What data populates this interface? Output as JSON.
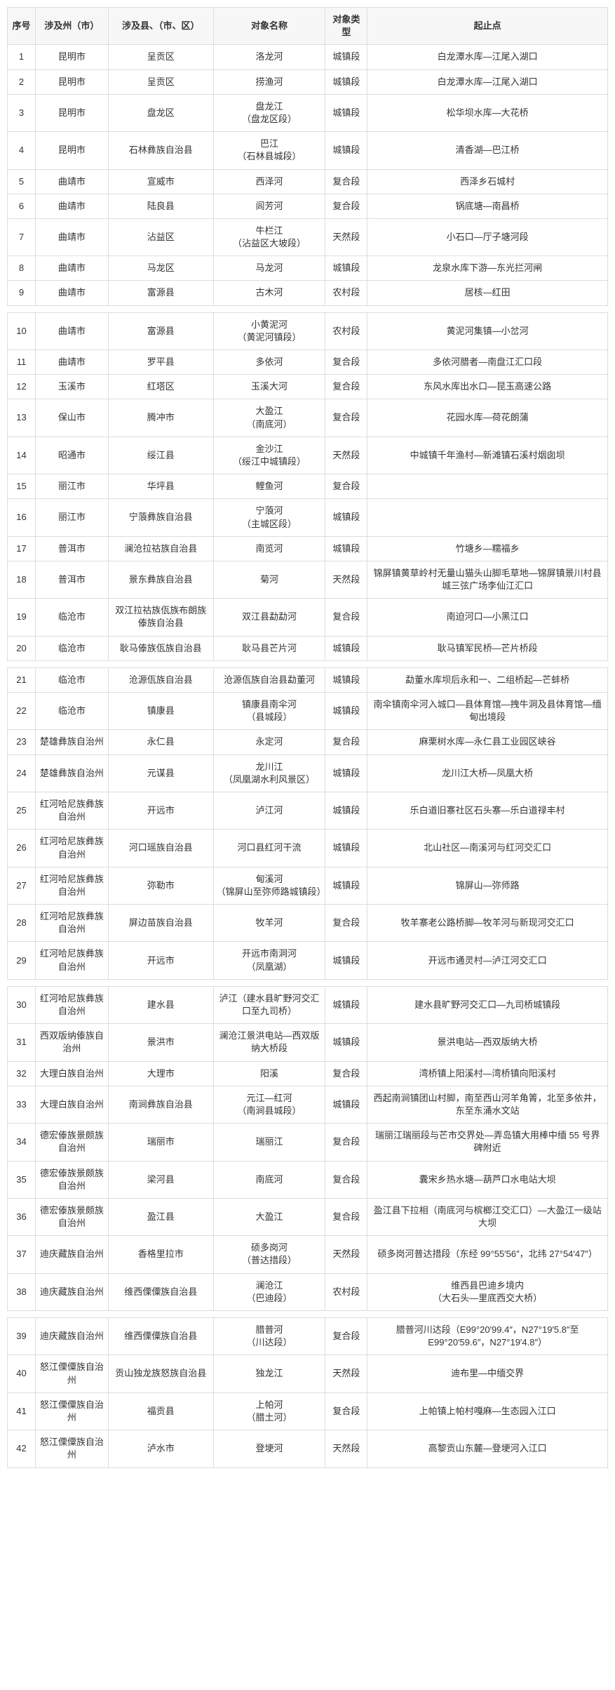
{
  "headers": [
    "序号",
    "涉及州（市）",
    "涉及县、（市、区）",
    "对象名称",
    "对象类型",
    "起止点"
  ],
  "gap_after": [
    9,
    20,
    29,
    38
  ],
  "rows": [
    {
      "seq": 1,
      "pref": "昆明市",
      "county": "呈贡区",
      "obj": "洛龙河",
      "type": "城镇段",
      "span": "白龙潭水库—江尾入湖口"
    },
    {
      "seq": 2,
      "pref": "昆明市",
      "county": "呈贡区",
      "obj": "捞渔河",
      "type": "城镇段",
      "span": "白龙潭水库—江尾入湖口"
    },
    {
      "seq": 3,
      "pref": "昆明市",
      "county": "盘龙区",
      "obj": "盘龙江\n（盘龙区段）",
      "type": "城镇段",
      "span": "松华坝水库—大花桥"
    },
    {
      "seq": 4,
      "pref": "昆明市",
      "county": "石林彝族自治县",
      "obj": "巴江\n（石林县城段）",
      "type": "城镇段",
      "span": "清香湖—巴江桥"
    },
    {
      "seq": 5,
      "pref": "曲靖市",
      "county": "宣威市",
      "obj": "西泽河",
      "type": "复合段",
      "span": "西泽乡石城村"
    },
    {
      "seq": 6,
      "pref": "曲靖市",
      "county": "陆良县",
      "obj": "闾芳河",
      "type": "复合段",
      "span": "锅底塘—南昌桥"
    },
    {
      "seq": 7,
      "pref": "曲靖市",
      "county": "沾益区",
      "obj": "牛栏江\n（沾益区大坡段）",
      "type": "天然段",
      "span": "小石口—厅子塘河段"
    },
    {
      "seq": 8,
      "pref": "曲靖市",
      "county": "马龙区",
      "obj": "马龙河",
      "type": "城镇段",
      "span": "龙泉水库下游—东光拦河闸"
    },
    {
      "seq": 9,
      "pref": "曲靖市",
      "county": "富源县",
      "obj": "古木河",
      "type": "农村段",
      "span": "居核—红田"
    },
    {
      "seq": 10,
      "pref": "曲靖市",
      "county": "富源县",
      "obj": "小黄泥河\n（黄泥河镇段）",
      "type": "农村段",
      "span": "黄泥河集镇—小岔河"
    },
    {
      "seq": 11,
      "pref": "曲靖市",
      "county": "罗平县",
      "obj": "多依河",
      "type": "复合段",
      "span": "多依河腊者—南盘江汇口段"
    },
    {
      "seq": 12,
      "pref": "玉溪市",
      "county": "红塔区",
      "obj": "玉溪大河",
      "type": "复合段",
      "span": "东风水库出水口—昆玉高速公路"
    },
    {
      "seq": 13,
      "pref": "保山市",
      "county": "腾冲市",
      "obj": "大盈江\n（南底河）",
      "type": "复合段",
      "span": "花园水库—荷花朗蒲"
    },
    {
      "seq": 14,
      "pref": "昭通市",
      "county": "绥江县",
      "obj": "金沙江\n（绥江中城镇段）",
      "type": "天然段",
      "span": "中城镇千年渔村—新滩镇石溪村烟囱坝"
    },
    {
      "seq": 15,
      "pref": "丽江市",
      "county": "华坪县",
      "obj": "鲤鱼河",
      "type": "复合段",
      "span": ""
    },
    {
      "seq": 16,
      "pref": "丽江市",
      "county": "宁蒗彝族自治县",
      "obj": "宁蒗河\n（主城区段）",
      "type": "城镇段",
      "span": ""
    },
    {
      "seq": 17,
      "pref": "普洱市",
      "county": "澜沧拉祜族自治县",
      "obj": "南览河",
      "type": "城镇段",
      "span": "竹塘乡—糯福乡"
    },
    {
      "seq": 18,
      "pref": "普洱市",
      "county": "景东彝族自治县",
      "obj": "菊河",
      "type": "天然段",
      "span": "锦屏镇黄草岭村无量山猫头山脚毛草地—锦屏镇景川村县城三弦广场李仙江汇口"
    },
    {
      "seq": 19,
      "pref": "临沧市",
      "county": "双江拉祜族佤族布朗族傣族自治县",
      "obj": "双江县勐勐河",
      "type": "复合段",
      "span": "南迫河口—小黑江口"
    },
    {
      "seq": 20,
      "pref": "临沧市",
      "county": "耿马傣族佤族自治县",
      "obj": "耿马县芒片河",
      "type": "城镇段",
      "span": "耿马镇军民桥—芒片桥段"
    },
    {
      "seq": 21,
      "pref": "临沧市",
      "county": "沧源佤族自治县",
      "obj": "沧源佤族自治县勐董河",
      "type": "城镇段",
      "span": "勐董水库坝后永和一、二组桥起—芒蚌桥"
    },
    {
      "seq": 22,
      "pref": "临沧市",
      "county": "镇康县",
      "obj": "镇康县南伞河\n（县城段）",
      "type": "城镇段",
      "span": "南伞镇南伞河入城口—县体育馆—拽牛洞及县体育馆—缅甸出境段"
    },
    {
      "seq": 23,
      "pref": "楚雄彝族自治州",
      "county": "永仁县",
      "obj": "永定河",
      "type": "复合段",
      "span": "麻栗树水库—永仁县工业园区峡谷"
    },
    {
      "seq": 24,
      "pref": "楚雄彝族自治州",
      "county": "元谋县",
      "obj": "龙川江\n（凤凰湖水利风景区）",
      "type": "城镇段",
      "span": "龙川江大桥—凤凰大桥"
    },
    {
      "seq": 25,
      "pref": "红河哈尼族彝族自治州",
      "county": "开远市",
      "obj": "泸江河",
      "type": "城镇段",
      "span": "乐白道旧寨社区石头寨—乐白道禄丰村"
    },
    {
      "seq": 26,
      "pref": "红河哈尼族彝族自治州",
      "county": "河口瑶族自治县",
      "obj": "河口县红河干流",
      "type": "城镇段",
      "span": "北山社区—南溪河与红河交汇口"
    },
    {
      "seq": 27,
      "pref": "红河哈尼族彝族自治州",
      "county": "弥勒市",
      "obj": "甸溪河\n（锦屏山至弥师路城镇段）",
      "type": "城镇段",
      "span": "锦屏山—弥师路"
    },
    {
      "seq": 28,
      "pref": "红河哈尼族彝族自治州",
      "county": "屏边苗族自治县",
      "obj": "牧羊河",
      "type": "复合段",
      "span": "牧羊寨老公路桥脚—牧羊河与新现河交汇口"
    },
    {
      "seq": 29,
      "pref": "红河哈尼族彝族自治州",
      "county": "开远市",
      "obj": "开远市南洞河\n（凤凰湖）",
      "type": "城镇段",
      "span": "开远市通灵村—泸江河交汇口"
    },
    {
      "seq": 30,
      "pref": "红河哈尼族彝族自治州",
      "county": "建水县",
      "obj": "泸江（建水县旷野河交汇口至九司桥）",
      "type": "城镇段",
      "span": "建水县旷野河交汇口—九司桥城镇段"
    },
    {
      "seq": 31,
      "pref": "西双版纳傣族自治州",
      "county": "景洪市",
      "obj": "澜沧江景洪电站—西双版纳大桥段",
      "type": "城镇段",
      "span": "景洪电站—西双版纳大桥"
    },
    {
      "seq": 32,
      "pref": "大理白族自治州",
      "county": "大理市",
      "obj": "阳溪",
      "type": "复合段",
      "span": "湾桥镇上阳溪村—湾桥镇向阳溪村"
    },
    {
      "seq": 33,
      "pref": "大理白族自治州",
      "county": "南涧彝族自治县",
      "obj": "元江—红河\n（南涧县城段）",
      "type": "城镇段",
      "span": "西起南涧镇团山村脚，南至西山河羊角箐，北至多依井，东至东涌水文站"
    },
    {
      "seq": 34,
      "pref": "德宏傣族景颇族自治州",
      "county": "瑞丽市",
      "obj": "瑞丽江",
      "type": "复合段",
      "span": "瑞丽江瑞丽段与芒市交界处—弄岛镇大用棒中缅 55 号界碑附近"
    },
    {
      "seq": 35,
      "pref": "德宏傣族景颇族自治州",
      "county": "梁河县",
      "obj": "南底河",
      "type": "复合段",
      "span": "囊宋乡热水塘—葫芦口水电站大坝"
    },
    {
      "seq": 36,
      "pref": "德宏傣族景颇族自治州",
      "county": "盈江县",
      "obj": "大盈江",
      "type": "复合段",
      "span": "盈江县下拉相（南底河与槟榔江交汇口）—大盈江一级站大坝"
    },
    {
      "seq": 37,
      "pref": "迪庆藏族自治州",
      "county": "香格里拉市",
      "obj": "硕多岗河\n（普达措段）",
      "type": "天然段",
      "span": "硕多岗河普达措段（东经 99°55′56″，北纬 27°54′47″）"
    },
    {
      "seq": 38,
      "pref": "迪庆藏族自治州",
      "county": "维西傈僳族自治县",
      "obj": "澜沧江\n（巴迪段）",
      "type": "农村段",
      "span": "维西县巴迪乡境内\n（大石头—里底西交大桥）"
    },
    {
      "seq": 39,
      "pref": "迪庆藏族自治州",
      "county": "维西傈僳族自治县",
      "obj": "腊普河\n（川达段）",
      "type": "复合段",
      "span": "腊普河川达段（E99°20′99.4″，N27°19′5.8″至 E99°20′59.6″，N27°19′4.8″）"
    },
    {
      "seq": 40,
      "pref": "怒江傈僳族自治州",
      "county": "贡山独龙族怒族自治县",
      "obj": "独龙江",
      "type": "天然段",
      "span": "迪布里—中缅交界"
    },
    {
      "seq": 41,
      "pref": "怒江傈僳族自治州",
      "county": "福贡县",
      "obj": "上帕河\n（腊土河）",
      "type": "复合段",
      "span": "上帕镇上帕村嘎麻—生态园入江口"
    },
    {
      "seq": 42,
      "pref": "怒江傈僳族自治州",
      "county": "泸水市",
      "obj": "登埂河",
      "type": "天然段",
      "span": "高黎贡山东麓—登埂河入江口"
    }
  ]
}
